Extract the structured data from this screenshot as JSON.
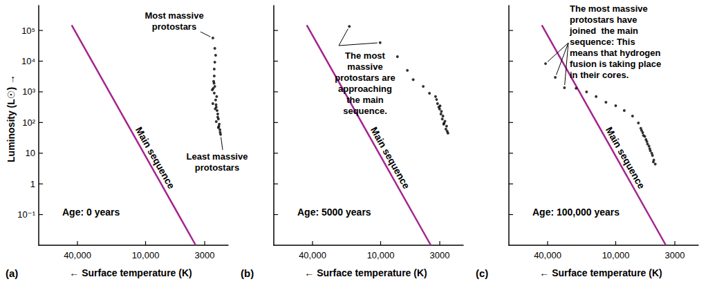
{
  "chart_data": [
    {
      "type": "scatter",
      "title": "(a)",
      "x_label": "← Surface temperature (K)",
      "y_label": "Luminosity (L☉) →",
      "log": true,
      "xlim": [
        88000,
        1860
      ],
      "ylim": [
        0.01,
        650000
      ],
      "xticks": [
        {
          "value": 40000,
          "label": "40,000"
        },
        {
          "value": 10000,
          "label": "10,000"
        },
        3000
      ],
      "yticks": [
        {
          "value": 100000,
          "label": "10⁵"
        },
        {
          "value": 10000,
          "label": "10⁴"
        },
        {
          "value": 1000,
          "label": "10³"
        },
        {
          "value": 100,
          "label": "10²"
        },
        10,
        1,
        {
          "value": 0.1,
          "label": "10⁻¹"
        }
      ],
      "annotations": [
        "Age: 0 years",
        "Most massive\nprotostars",
        "Least massive\nprotostars"
      ],
      "series": [
        {
          "type": "line",
          "name": "Main sequence",
          "color": "#a4248f",
          "line_style": "solid",
          "x": [
            45000,
            3600
          ],
          "values": [
            150000,
            0.01
          ]
        },
        {
          "type": "scatter",
          "color": "#000000",
          "marker": "circle",
          "x": [
            2540,
            2440,
            2400,
            2440,
            2470,
            2470,
            2500,
            2440,
            2570,
            2470,
            2400,
            2540,
            2370,
            2330,
            2300,
            2270,
            2370,
            2230,
            2270,
            2200,
            2170,
            2350,
            2420,
            2300,
            2250,
            2190,
            2480,
            2520,
            2380
          ],
          "values": [
            56600,
            26000,
            15500,
            9300,
            5500,
            3300,
            2200,
            1500,
            1170,
            910,
            540,
            415,
            320,
            245,
            190,
            130,
            107,
            88,
            68,
            58,
            41,
            700,
            280,
            150,
            75,
            48,
            1900,
            1300,
            380
          ]
        }
      ]
    },
    {
      "type": "scatter",
      "title": "(b)",
      "x_label": "← Surface temperature (K)",
      "log": true,
      "tick_labels": "x",
      "xlim": [
        88000,
        1860
      ],
      "ylim": [
        0.01,
        650000
      ],
      "xticks": [
        {
          "value": 40000,
          "label": "40,000"
        },
        {
          "value": 10000,
          "label": "10,000"
        },
        3000
      ],
      "yticks": [
        100000,
        10000,
        1000,
        100,
        10,
        1,
        0.1
      ],
      "annotations": [
        "Age: 5000 years",
        "The most\nmassive\nprotostars are\napproaching\nthe main\nsequence."
      ],
      "series": [
        {
          "type": "line",
          "name": "Main sequence",
          "color": "#a4248f",
          "line_style": "solid",
          "x": [
            45000,
            3600
          ],
          "values": [
            150000,
            0.01
          ]
        },
        {
          "type": "scatter",
          "color": "#000000",
          "marker": "circle",
          "x": [
            18900,
            10100,
            7100,
            5800,
            5150,
            4200,
            3700,
            3270,
            3140,
            3010,
            2930,
            2850,
            2770,
            2650,
            2540,
            3060,
            2810,
            2610,
            3200,
            2900,
            2700,
            2580,
            2980,
            2750
          ],
          "values": [
            136000,
            40000,
            14000,
            5000,
            2500,
            1500,
            900,
            700,
            415,
            275,
            190,
            130,
            88,
            61,
            45,
            320,
            163,
            76,
            560,
            230,
            110,
            52,
            350,
            95
          ]
        }
      ]
    },
    {
      "type": "scatter",
      "title": "(c)",
      "x_label": "← Surface temperature (K)",
      "log": true,
      "tick_labels": "x",
      "xlim": [
        88000,
        1860
      ],
      "ylim": [
        0.01,
        650000
      ],
      "xticks": [
        {
          "value": 40000,
          "label": "40,000"
        },
        {
          "value": 10000,
          "label": "10,000"
        },
        3000
      ],
      "yticks": [
        100000,
        10000,
        1000,
        100,
        10,
        1,
        0.1
      ],
      "annotations": [
        "Age: 100,000 years",
        "The most massive\nprotostars have\njoined  the main\nsequence: This\nmeans that hydrogen\nfusion is taking place\nin their cores."
      ],
      "series": [
        {
          "type": "line",
          "name": "Main sequence",
          "color": "#a4248f",
          "line_style": "solid",
          "x": [
            45000,
            3600
          ],
          "values": [
            150000,
            0.01
          ]
        },
        {
          "type": "scatter",
          "color": "#000000",
          "marker": "circle",
          "x": [
            41700,
            34200,
            28400,
            22400,
            18100,
            14900,
            12200,
            10000,
            8400,
            7100,
            6300,
            6000,
            5770,
            5530,
            5300,
            5080,
            4940,
            4730,
            4600,
            4470,
            5690,
            5230,
            4800,
            5900,
            5400,
            5000,
            4650
          ],
          "values": [
            8300,
            2950,
            1360,
            1300,
            1000,
            700,
            460,
            355,
            245,
            163,
            97,
            65,
            47,
            35,
            24,
            17,
            12,
            8.5,
            6,
            4.4,
            38,
            20,
            10,
            55,
            28,
            14,
            5.2
          ]
        }
      ]
    }
  ]
}
